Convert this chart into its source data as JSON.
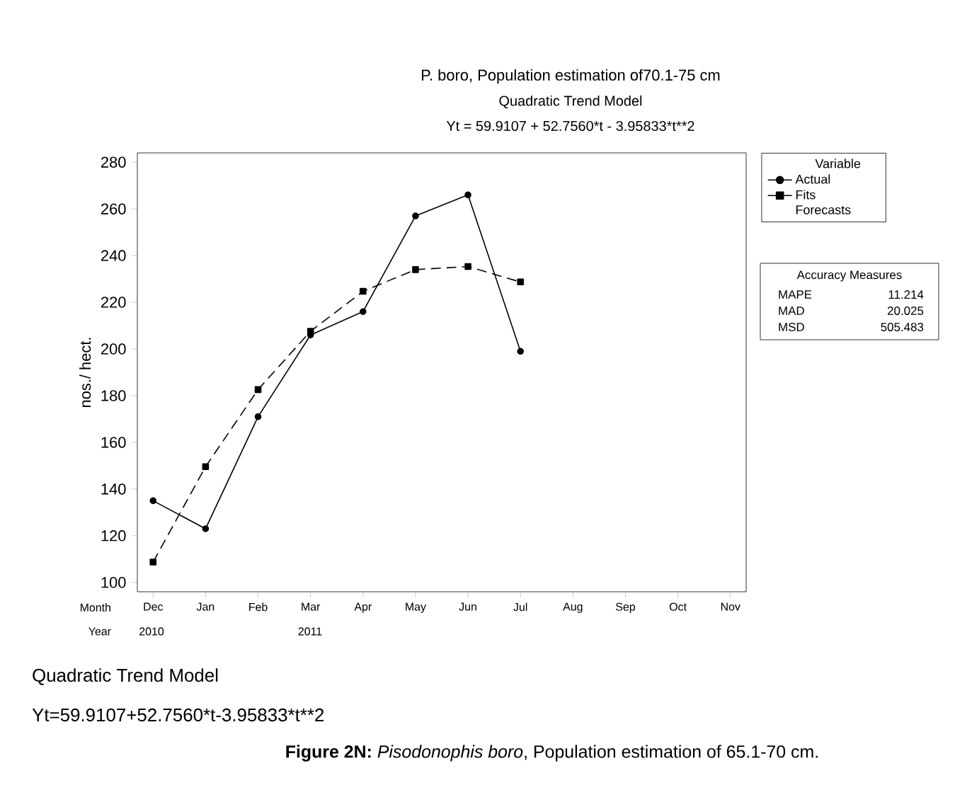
{
  "chart_data": {
    "type": "line",
    "title": "P. boro, Population estimation of70.1-75 cm",
    "subtitle": "Quadratic Trend Model",
    "ylabel": "nos./ hect.",
    "legend_title": "Variable",
    "legend": "right",
    "categories": [
      "Dec",
      "Jan",
      "Feb",
      "Mar",
      "Apr",
      "May",
      "Jun",
      "Jul",
      "Aug",
      "Sep",
      "Oct",
      "Nov"
    ],
    "ylim": [
      96,
      284
    ],
    "yticks": [
      100,
      120,
      140,
      160,
      180,
      200,
      220,
      240,
      260,
      280
    ],
    "grid": false,
    "series": [
      {
        "name": "Actual",
        "color": "#000000",
        "marker": "circle",
        "line_style": "solid",
        "values": [
          135,
          123,
          171,
          206,
          216,
          257,
          266,
          199,
          null,
          null,
          null,
          null
        ]
      },
      {
        "name": "Fits",
        "color": "#000000",
        "marker": "square",
        "line_style": "dashed",
        "values": [
          108.7,
          149.6,
          182.6,
          207.6,
          224.7,
          234.0,
          235.3,
          228.7,
          null,
          null,
          null,
          null
        ]
      },
      {
        "name": "Forecasts",
        "marker": "none",
        "line_style": "solid",
        "values": [
          null,
          null,
          null,
          null,
          null,
          null,
          null,
          null,
          null,
          null,
          null,
          null
        ]
      }
    ],
    "annotations": [
      "Yt = 59.9107 + 52.7560*t - 3.95833*t**2",
      "Accuracy Measures",
      "MAPE",
      "11.214",
      "MAD",
      "20.025",
      "MSD",
      "505.483",
      "Month",
      "Year",
      "2010",
      "2011",
      "Quadratic Trend Model",
      "Yt=59.9107+52.7560*t-3.95833*t**2",
      "**Figure 2N:** *Pisodonophis boro*, Population estimation of 65.1-70 cm."
    ]
  }
}
